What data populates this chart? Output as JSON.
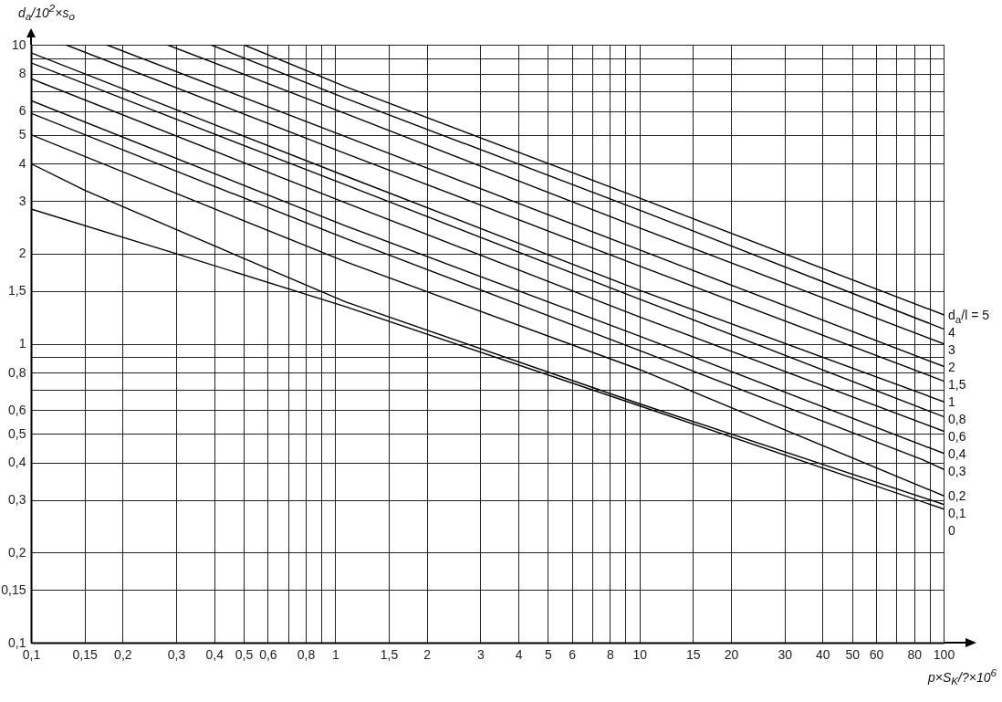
{
  "chart_data": {
    "type": "line",
    "xlabel": "p×S$_{K}$/?×10$^{6}$",
    "ylabel": "d$_{a}$/10$^{2}$×s$_{o}$",
    "log": "xy",
    "grid": true,
    "legend": false,
    "marker": "none",
    "line_style": "solid",
    "xlim": [
      0.1,
      100
    ],
    "ylim": [
      0.1,
      10
    ],
    "xticks": [
      {
        "value": 0.1,
        "label": "0,1"
      },
      {
        "value": 0.15,
        "label": "0,15"
      },
      {
        "value": 0.2,
        "label": "0,2"
      },
      {
        "value": 0.3,
        "label": "0,3"
      },
      {
        "value": 0.4,
        "label": "0,4"
      },
      {
        "value": 0.5,
        "label": "0,5"
      },
      {
        "value": 0.6,
        "label": "0,6"
      },
      {
        "value": 0.7,
        "label": null
      },
      {
        "value": 0.8,
        "label": "0,8"
      },
      {
        "value": 0.9,
        "label": null
      },
      1,
      {
        "value": 1.5,
        "label": "1,5"
      },
      2,
      3,
      4,
      5,
      6,
      {
        "value": 7,
        "label": null
      },
      8,
      {
        "value": 9,
        "label": null
      },
      10,
      15,
      20,
      30,
      40,
      50,
      60,
      {
        "value": 70,
        "label": null
      },
      80,
      {
        "value": 90,
        "label": null
      },
      100
    ],
    "yticks": [
      {
        "value": 0.1,
        "label": "0,1"
      },
      {
        "value": 0.15,
        "label": "0,15"
      },
      {
        "value": 0.2,
        "label": "0,2"
      },
      {
        "value": 0.3,
        "label": "0,3"
      },
      {
        "value": 0.4,
        "label": "0,4"
      },
      {
        "value": 0.5,
        "label": "0,5"
      },
      {
        "value": 0.6,
        "label": "0,6"
      },
      {
        "value": 0.7,
        "label": null
      },
      {
        "value": 0.8,
        "label": "0,8"
      },
      {
        "value": 0.9,
        "label": null
      },
      1,
      {
        "value": 1.5,
        "label": "1,5"
      },
      2,
      3,
      4,
      5,
      6,
      {
        "value": 7,
        "label": null
      },
      8,
      {
        "value": 9,
        "label": null
      },
      10
    ],
    "series": [
      {
        "name": "d$_{a}$/l = 5",
        "color": "#000000",
        "x": [
          0.5,
          1.08,
          10,
          100
        ],
        "values": [
          10,
          7.24,
          3.07,
          1.25
        ]
      },
      {
        "name": "4",
        "color": "#000000",
        "x": [
          0.39,
          1.08,
          10,
          100
        ],
        "values": [
          10,
          6.62,
          2.8,
          1.12
        ]
      },
      {
        "name": "3",
        "color": "#000000",
        "x": [
          0.28,
          1.08,
          10,
          100
        ],
        "values": [
          10,
          5.89,
          2.44,
          1.0
        ]
      },
      {
        "name": "2",
        "color": "#000000",
        "x": [
          0.177,
          1.08,
          10,
          100
        ],
        "values": [
          10,
          4.93,
          2.06,
          0.84
        ]
      },
      {
        "name": "1,5",
        "color": "#000000",
        "x": [
          0.13,
          1.08,
          10,
          100
        ],
        "values": [
          10,
          4.33,
          1.82,
          0.75
        ]
      },
      {
        "name": "1",
        "color": "#000000",
        "x": [
          0.1,
          1.08,
          10,
          100
        ],
        "values": [
          9.4,
          3.64,
          1.51,
          0.64
        ]
      },
      {
        "name": "0,8",
        "color": "#000000",
        "x": [
          0.1,
          1.08,
          10,
          100
        ],
        "values": [
          8.7,
          3.4,
          1.41,
          0.57
        ]
      },
      {
        "name": "0,6",
        "color": "#000000",
        "x": [
          0.1,
          1.08,
          10,
          100
        ],
        "values": [
          7.7,
          2.96,
          1.23,
          0.51
        ]
      },
      {
        "name": "0,4",
        "color": "#000000",
        "x": [
          0.1,
          1.08,
          10,
          100
        ],
        "values": [
          6.5,
          2.48,
          1.06,
          0.43
        ]
      },
      {
        "name": "0,3",
        "color": "#000000",
        "x": [
          0.1,
          1.08,
          10,
          85,
          100
        ],
        "values": [
          5.9,
          2.25,
          0.95,
          0.41,
          0.38
        ]
      },
      {
        "name": "0,2",
        "color": "#000000",
        "x": [
          0.1,
          1.08,
          10,
          100
        ],
        "values": [
          5.0,
          1.88,
          0.82,
          0.31
        ]
      },
      {
        "name": "0,1",
        "color": "#000000",
        "x": [
          0.1,
          0.15,
          0.3,
          1.08,
          10,
          100
        ],
        "values": [
          4.0,
          3.26,
          2.41,
          1.38,
          0.63,
          0.29
        ]
      },
      {
        "name": "0",
        "color": "#000000",
        "x": [
          0.1,
          0.3,
          1.08,
          10,
          100
        ],
        "values": [
          2.82,
          2.0,
          1.33,
          0.62,
          0.28
        ]
      }
    ]
  }
}
